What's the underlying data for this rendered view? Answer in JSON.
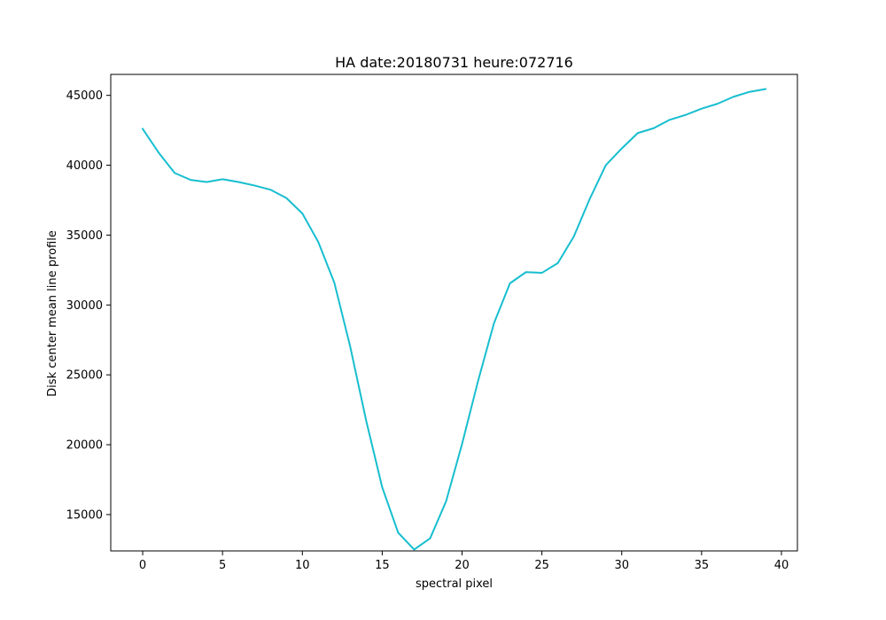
{
  "chart_data": {
    "type": "line",
    "title": "HA date:20180731 heure:072716",
    "xlabel": "spectral pixel",
    "ylabel": "Disk center mean line profile",
    "xlim": [
      -2,
      41
    ],
    "ylim": [
      12400,
      46500
    ],
    "xticks": [
      0,
      5,
      10,
      15,
      20,
      25,
      30,
      35,
      40
    ],
    "yticks": [
      15000,
      20000,
      25000,
      30000,
      35000,
      40000,
      45000
    ],
    "xtick_labels": [
      "0",
      "5",
      "10",
      "15",
      "20",
      "25",
      "30",
      "35",
      "40"
    ],
    "ytick_labels": [
      "15000",
      "20000",
      "25000",
      "30000",
      "35000",
      "40000",
      "45000"
    ],
    "grid": false,
    "series": [
      {
        "color": "#17becf",
        "x": [
          0,
          1,
          2,
          3,
          4,
          5,
          6,
          7,
          8,
          9,
          10,
          11,
          12,
          13,
          14,
          15,
          16,
          17,
          18,
          19,
          20,
          21,
          22,
          23,
          24,
          25,
          26,
          27,
          28,
          29,
          30,
          31,
          32,
          33,
          34,
          35,
          36,
          37,
          38,
          39
        ],
        "y": [
          42600,
          40900,
          39450,
          38950,
          38800,
          39000,
          38800,
          38550,
          38250,
          37650,
          36550,
          34500,
          31600,
          27000,
          21700,
          16950,
          13700,
          12500,
          13300,
          15950,
          20050,
          24550,
          28700,
          31550,
          32350,
          32300,
          33000,
          34900,
          37600,
          40000,
          41200,
          42300,
          42650,
          43250,
          43600,
          44050,
          44400,
          44900,
          45250,
          45450
        ]
      }
    ]
  }
}
